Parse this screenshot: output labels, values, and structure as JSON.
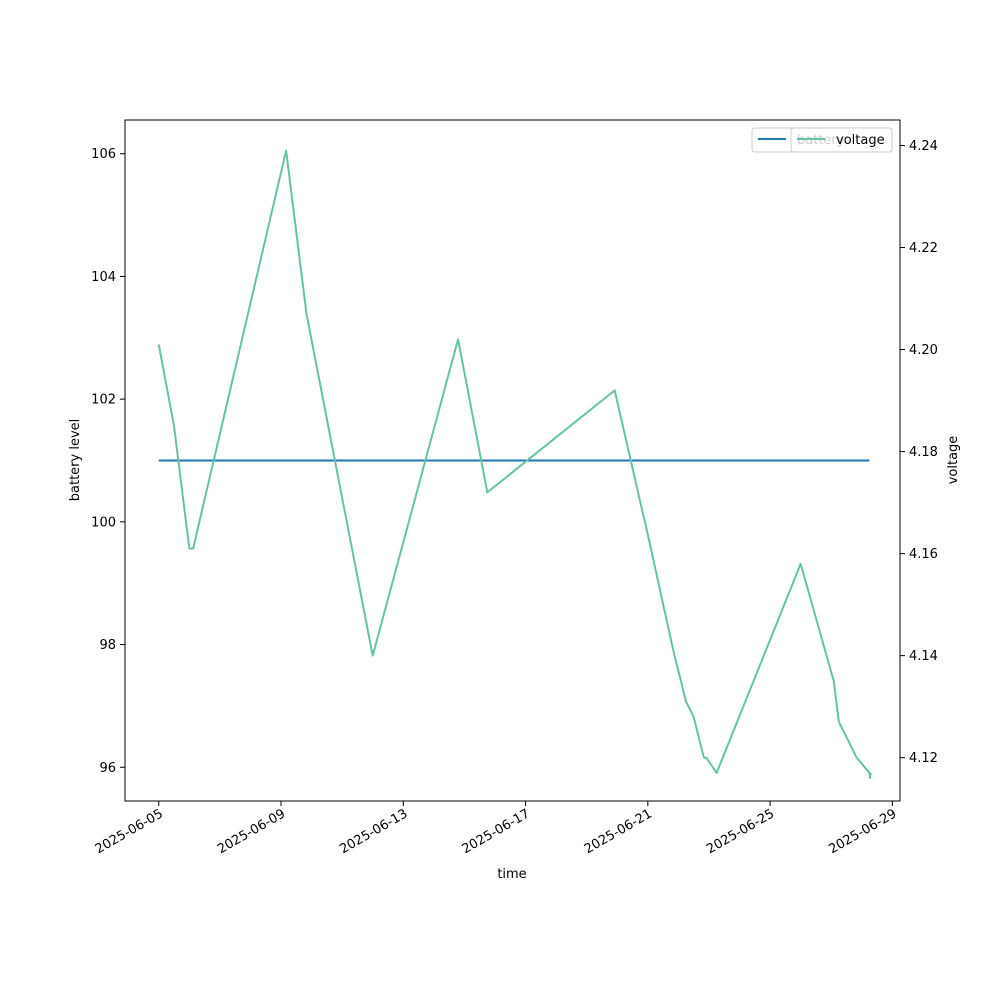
{
  "chart_data": {
    "type": "line",
    "xlabel": "time",
    "ylabel": "battery level",
    "y2label": "voltage",
    "xlim": [
      "2025-06-03 21:30",
      "2025-06-29 06:00"
    ],
    "ylim": [
      95.45,
      106.55
    ],
    "y2lim": [
      4.1115,
      4.245
    ],
    "x_ticks": [
      "2025-06-05",
      "2025-06-09",
      "2025-06-13",
      "2025-06-17",
      "2025-06-21",
      "2025-06-25",
      "2025-06-29"
    ],
    "y_ticks": [
      96,
      98,
      100,
      102,
      104,
      106
    ],
    "y2_ticks": [
      4.12,
      4.14,
      4.16,
      4.18,
      4.2,
      4.22,
      4.24
    ],
    "y2_tick_labels": [
      "4.12",
      "4.14",
      "4.16",
      "4.18",
      "4.20",
      "4.22",
      "4.24"
    ],
    "grid": false,
    "legend_position": "top-right",
    "series": [
      {
        "name": "battery",
        "axis": "left",
        "color": "#1f77b4",
        "x": [
          "2025-06-05 00:00",
          "2025-06-28 06:00"
        ],
        "y": [
          101,
          101
        ]
      },
      {
        "name": "voltage",
        "axis": "right",
        "color": "#66c2a5",
        "x": [
          "2025-06-05 00:00",
          "2025-06-05 12:00",
          "2025-06-06 00:00",
          "2025-06-06 03:00",
          "2025-06-09 04:00",
          "2025-06-09 20:00",
          "2025-06-12 00:00",
          "2025-06-14 19:00",
          "2025-06-15 18:00",
          "2025-06-19 22:00",
          "2025-06-20 20:00",
          "2025-06-20 22:00",
          "2025-06-21 20:00",
          "2025-06-22 06:00",
          "2025-06-22 12:00",
          "2025-06-22 20:00",
          "2025-06-22 22:00",
          "2025-06-23 06:00",
          "2025-06-26 00:00",
          "2025-06-27 02:00",
          "2025-06-27 06:00",
          "2025-06-27 12:00",
          "2025-06-27 20:00",
          "2025-06-28 06:00",
          "2025-06-28 06:30",
          "2025-06-28 07:00"
        ],
        "y": [
          4.201,
          4.185,
          4.161,
          4.161,
          4.239,
          4.207,
          4.14,
          4.202,
          4.172,
          4.192,
          4.168,
          4.166,
          4.141,
          4.131,
          4.128,
          4.12,
          4.12,
          4.117,
          4.158,
          4.135,
          4.127,
          4.124,
          4.12,
          4.117,
          4.116,
          4.117
        ]
      }
    ]
  }
}
